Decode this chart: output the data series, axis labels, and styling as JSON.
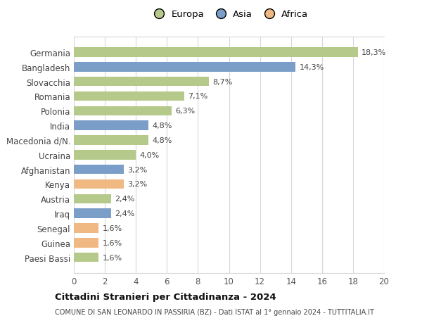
{
  "categories": [
    "Germania",
    "Bangladesh",
    "Slovacchia",
    "Romania",
    "Polonia",
    "India",
    "Macedonia d/N.",
    "Ucraina",
    "Afghanistan",
    "Kenya",
    "Austria",
    "Iraq",
    "Senegal",
    "Guinea",
    "Paesi Bassi"
  ],
  "values": [
    18.3,
    14.3,
    8.7,
    7.1,
    6.3,
    4.8,
    4.8,
    4.0,
    3.2,
    3.2,
    2.4,
    2.4,
    1.6,
    1.6,
    1.6
  ],
  "labels": [
    "18,3%",
    "14,3%",
    "8,7%",
    "7,1%",
    "6,3%",
    "4,8%",
    "4,8%",
    "4,0%",
    "3,2%",
    "3,2%",
    "2,4%",
    "2,4%",
    "1,6%",
    "1,6%",
    "1,6%"
  ],
  "continents": [
    "Europa",
    "Asia",
    "Europa",
    "Europa",
    "Europa",
    "Asia",
    "Europa",
    "Europa",
    "Asia",
    "Africa",
    "Europa",
    "Asia",
    "Africa",
    "Africa",
    "Europa"
  ],
  "colors": {
    "Europa": "#b5c98a",
    "Asia": "#7b9ec8",
    "Africa": "#f0b882"
  },
  "xlim": [
    0,
    20
  ],
  "xticks": [
    0,
    2,
    4,
    6,
    8,
    10,
    12,
    14,
    16,
    18,
    20
  ],
  "title": "Cittadini Stranieri per Cittadinanza - 2024",
  "subtitle": "COMUNE DI SAN LEONARDO IN PASSIRIA (BZ) - Dati ISTAT al 1° gennaio 2024 - TUTTITALIA.IT",
  "bg_color": "#ffffff",
  "grid_color": "#d8d8d8"
}
